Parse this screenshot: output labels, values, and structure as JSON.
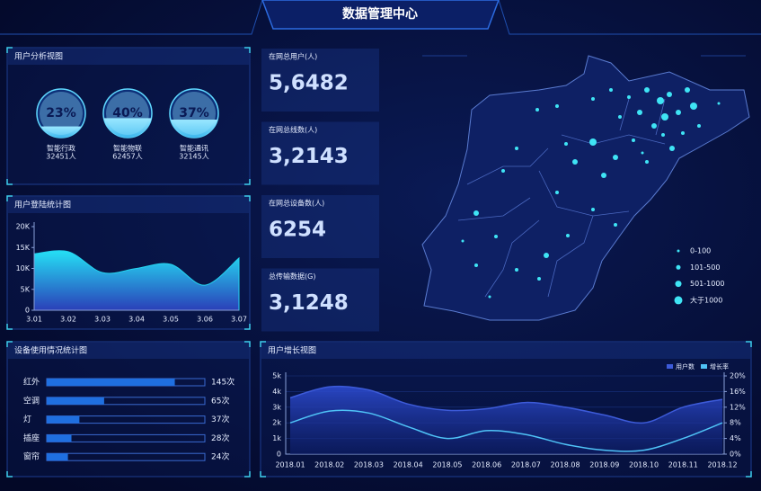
{
  "title": "数据管理中心",
  "user_analysis": {
    "title": "用户分析视图",
    "items": [
      {
        "percent": {
          "value": 23,
          "label": "23%"
        },
        "name": "智能行政",
        "count": "32451人"
      },
      {
        "percent": {
          "value": 40,
          "label": "40%"
        },
        "name": "智能物联",
        "count": "62457人"
      },
      {
        "percent": {
          "value": 37,
          "label": "37%"
        },
        "name": "智能通讯",
        "count": "32145人"
      }
    ]
  },
  "stats": [
    {
      "label": "在网总用户(人)",
      "value": "5,6482"
    },
    {
      "label": "在网总线数(人)",
      "value": "3,2143"
    },
    {
      "label": "在网总设备数(人)",
      "value": "6254"
    },
    {
      "label": "总传输数据(G)",
      "value": "3,1248"
    }
  ],
  "map": {
    "legend": [
      "0-100",
      "101-500",
      "501-1000",
      "大于1000"
    ]
  },
  "chart_data": [
    {
      "type": "area",
      "title": "用户登陆统计图",
      "categories": [
        "3.01",
        "3.02",
        "3.03",
        "3.04",
        "3.05",
        "3.06",
        "3.07"
      ],
      "values": [
        13500,
        14000,
        9000,
        10000,
        11000,
        6000,
        12500
      ],
      "color": "#25d4f0",
      "ylim": [
        0,
        20000
      ],
      "yticks": [
        0,
        {
          "value": 5000,
          "label": "5K"
        },
        {
          "value": 10000,
          "label": "10K"
        },
        {
          "value": 15000,
          "label": "15K"
        },
        {
          "value": 20000,
          "label": "20K"
        }
      ]
    },
    {
      "type": "hbar",
      "title": "设备使用情况统计图",
      "categories": [
        "红外",
        "空调",
        "灯",
        "插座",
        "窗帘"
      ],
      "values": [
        145,
        65,
        37,
        28,
        24
      ],
      "value_labels": [
        "145次",
        "65次",
        "37次",
        "28次",
        "24次"
      ],
      "color": "#1f6fe0"
    },
    {
      "type": "line",
      "title": "用户增长视图",
      "categories": [
        "2018.01",
        "2018.02",
        "2018.03",
        "2018.04",
        "2018.05",
        "2018.06",
        "2018.07",
        "2018.08",
        "2018.09",
        "2018.10",
        "2018.11",
        "2018.12"
      ],
      "series": [
        {
          "name": "用户数",
          "color": "#3d5bd9",
          "values": [
            3600,
            4300,
            4100,
            3200,
            2800,
            2900,
            3300,
            3000,
            2500,
            2000,
            3000,
            3500
          ]
        },
        {
          "name": "增长率",
          "color": "#4fc3f7",
          "axis": "y2",
          "values": [
            8,
            11,
            10.5,
            7,
            4,
            6,
            5,
            2.5,
            1,
            1,
            4,
            8
          ]
        }
      ],
      "ylim": [
        0,
        5000
      ],
      "yticks": [
        0,
        {
          "value": 1000,
          "label": "1k"
        },
        {
          "value": 2000,
          "label": "2k"
        },
        {
          "value": 3000,
          "label": "3k"
        },
        {
          "value": 4000,
          "label": "4k"
        },
        {
          "value": 5000,
          "label": "5k"
        }
      ],
      "y2lim": [
        0,
        20
      ],
      "y2ticks": [
        {
          "value": 0,
          "label": "0%"
        },
        {
          "value": 4,
          "label": "4%"
        },
        {
          "value": 8,
          "label": "8%"
        },
        {
          "value": 12,
          "label": "12%"
        },
        {
          "value": 16,
          "label": "16%"
        },
        {
          "value": 20,
          "label": "20%"
        }
      ]
    }
  ]
}
